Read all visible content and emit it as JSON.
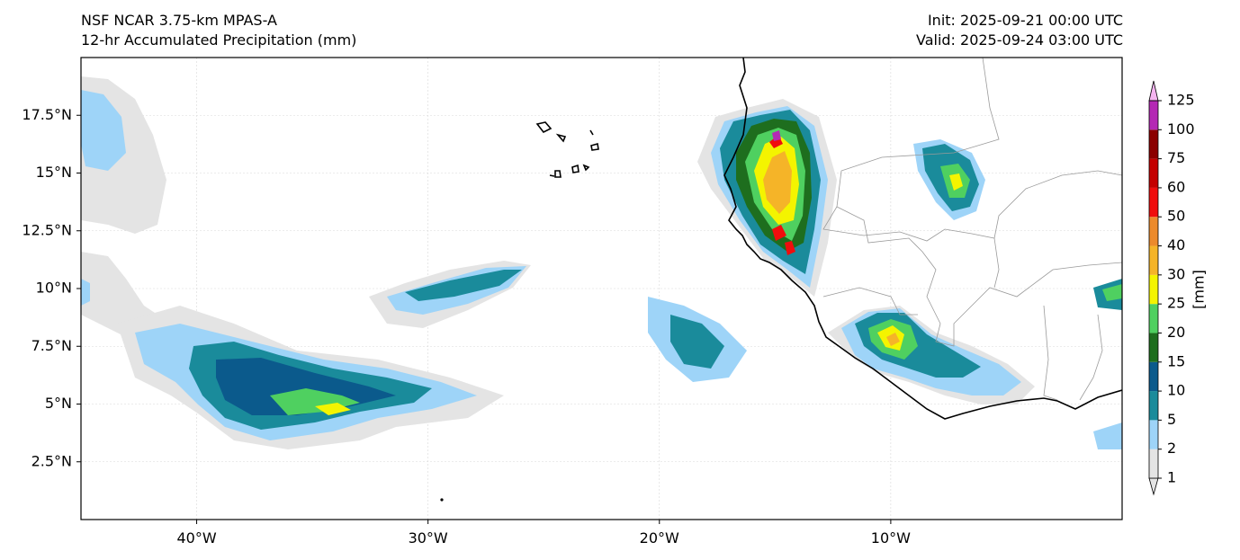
{
  "header": {
    "title": "NSF NCAR 3.75-km MPAS-A",
    "subtitle": "12-hr Accumulated Precipitation (mm)",
    "init": "Init: 2025-09-21 00:00 UTC",
    "valid": "Valid: 2025-09-24 03:00 UTC"
  },
  "map": {
    "lon_range": [
      -45,
      0
    ],
    "lat_range": [
      0,
      20
    ],
    "lon_ticks": [
      {
        "value": -40,
        "label": "40°W"
      },
      {
        "value": -30,
        "label": "30°W"
      },
      {
        "value": -20,
        "label": "20°W"
      },
      {
        "value": -10,
        "label": "10°W"
      }
    ],
    "lat_ticks": [
      {
        "value": 17.5,
        "label": "17.5°N"
      },
      {
        "value": 15,
        "label": "15°N"
      },
      {
        "value": 12.5,
        "label": "12.5°N"
      },
      {
        "value": 10,
        "label": "10°N"
      },
      {
        "value": 7.5,
        "label": "7.5°N"
      },
      {
        "value": 5,
        "label": "5°N"
      },
      {
        "value": 2.5,
        "label": "2.5°N"
      }
    ],
    "gridlines": true
  },
  "colorbar": {
    "unit_label": "[mm]",
    "levels": [
      "1",
      "2",
      "5",
      "10",
      "15",
      "20",
      "25",
      "30",
      "40",
      "50",
      "60",
      "75",
      "100",
      "125"
    ],
    "colors": [
      "#e4e4e4",
      "#9ed4f8",
      "#1a8b9b",
      "#0b5a8c",
      "#1e6e1e",
      "#4fd060",
      "#f4f400",
      "#f5b428",
      "#ec8a2c",
      "#f00d0d",
      "#c40000",
      "#8b0000",
      "#b428b4",
      "#f5b4f0"
    ]
  },
  "colors": {
    "precip_1": "#e4e4e4",
    "precip_2": "#9ed4f8",
    "precip_5": "#1a8b9b",
    "precip_10": "#0b5a8c",
    "precip_15": "#1e6e1e",
    "precip_20": "#4fd060",
    "precip_25": "#f4f400",
    "precip_30": "#f5b428",
    "coastline": "#000000",
    "borders": "#9a9a9a"
  }
}
